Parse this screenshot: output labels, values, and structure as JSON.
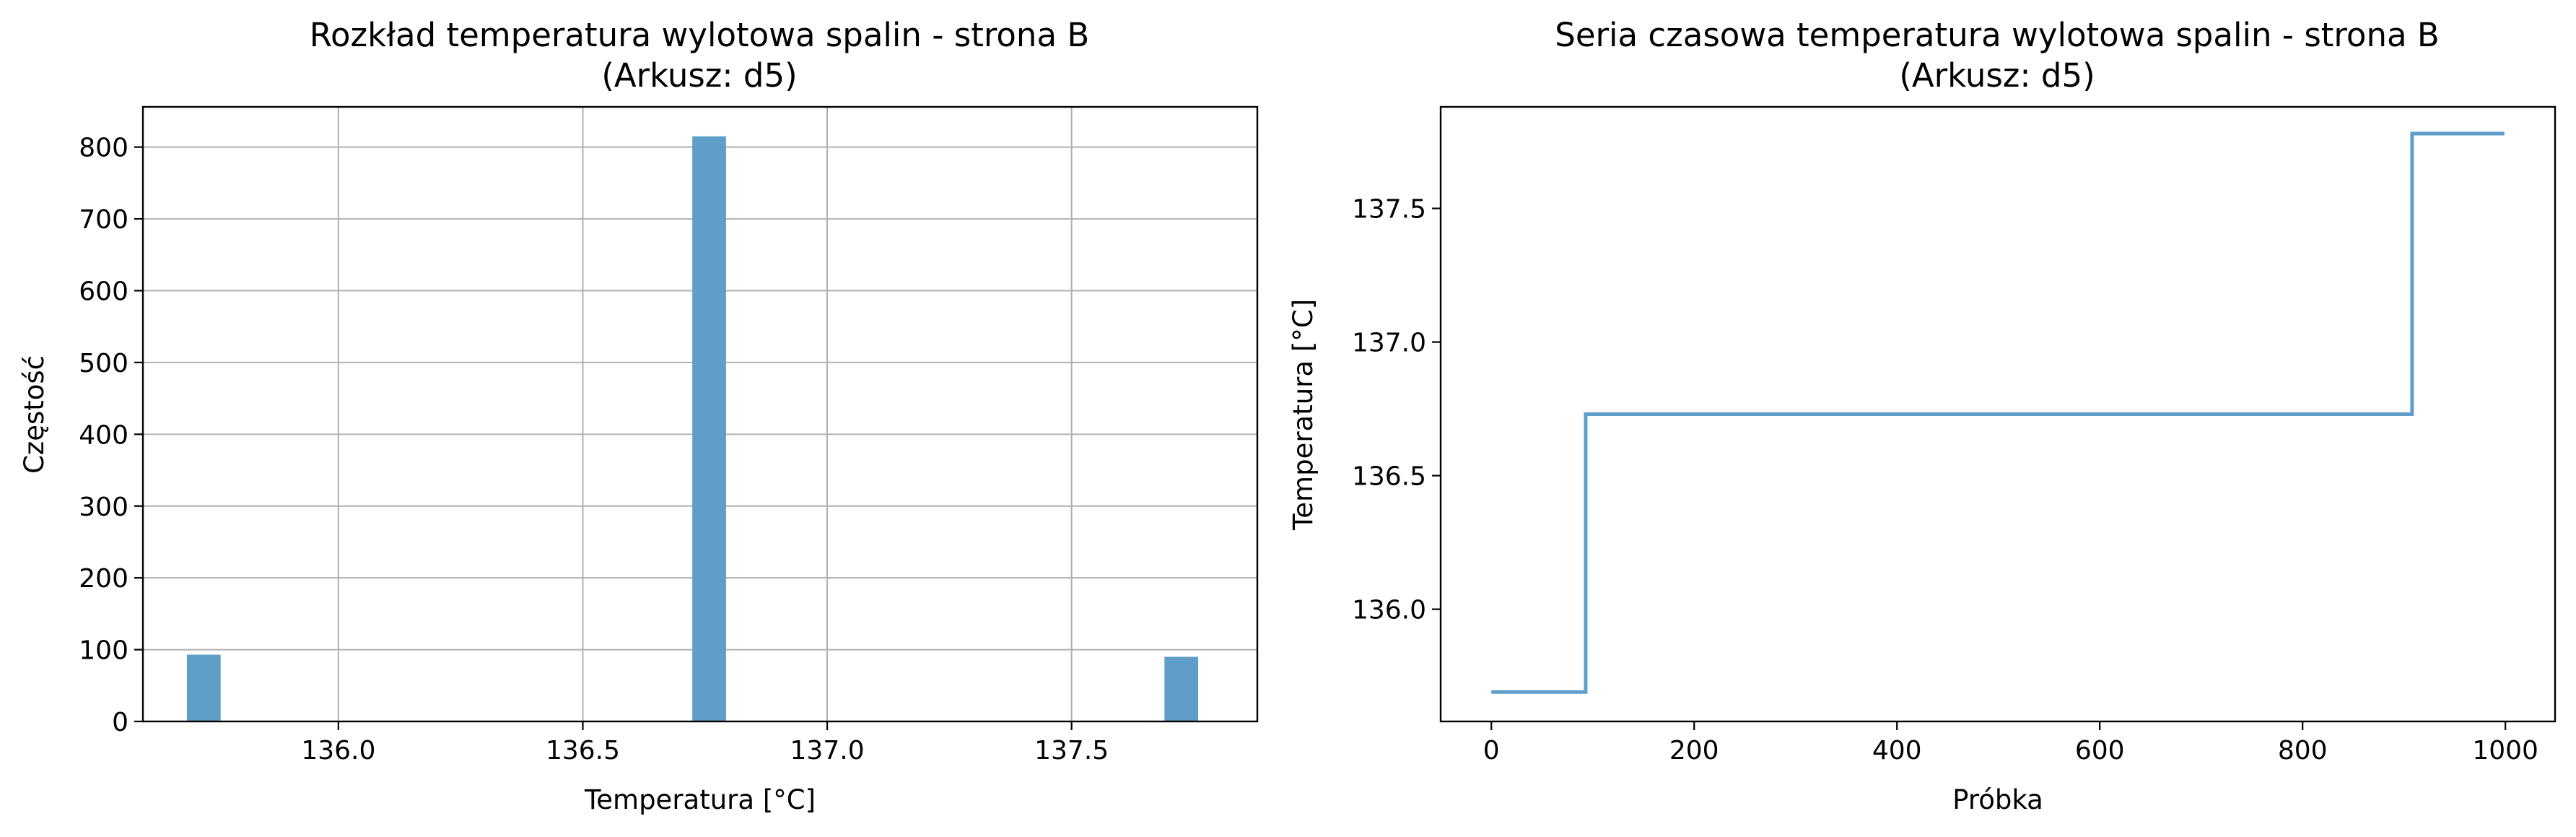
{
  "chart_data": [
    {
      "type": "bar",
      "title": "Rozkład temperatura wylotowa spalin - strona B",
      "subtitle": "(Arkusz: d5)",
      "xlabel": "Temperatura [°C]",
      "ylabel": "Częstość",
      "xlim": [
        135.6,
        137.88
      ],
      "ylim": [
        0,
        856
      ],
      "x_ticks": [
        "136.0",
        "136.5",
        "137.0",
        "137.5"
      ],
      "y_ticks": [
        "0",
        "100",
        "200",
        "300",
        "400",
        "500",
        "600",
        "700",
        "800"
      ],
      "grid": true,
      "bar_color": "#5f9ec9",
      "bars": [
        {
          "x_start": 135.69,
          "x_end": 135.759,
          "value": 93
        },
        {
          "x_start": 136.724,
          "x_end": 136.793,
          "value": 815
        },
        {
          "x_start": 137.69,
          "x_end": 137.759,
          "value": 90
        }
      ]
    },
    {
      "type": "line",
      "title": "Seria czasowa temperatura wylotowa spalin - strona B",
      "subtitle": "(Arkusz: d5)",
      "xlabel": "Próbka",
      "ylabel": "Temperatura [°C]",
      "xlim": [
        -50,
        1049
      ],
      "ylim": [
        135.58,
        137.88
      ],
      "x_ticks": [
        "0",
        "200",
        "400",
        "600",
        "800",
        "1000"
      ],
      "y_ticks": [
        "136.0",
        "136.5",
        "137.0",
        "137.5"
      ],
      "grid": false,
      "line_color": "#5f9ec9",
      "series": [
        {
          "x": [
            0,
            93,
            93,
            908,
            908,
            999
          ],
          "y": [
            135.69,
            135.69,
            136.73,
            136.73,
            137.78,
            137.78
          ]
        }
      ]
    }
  ]
}
